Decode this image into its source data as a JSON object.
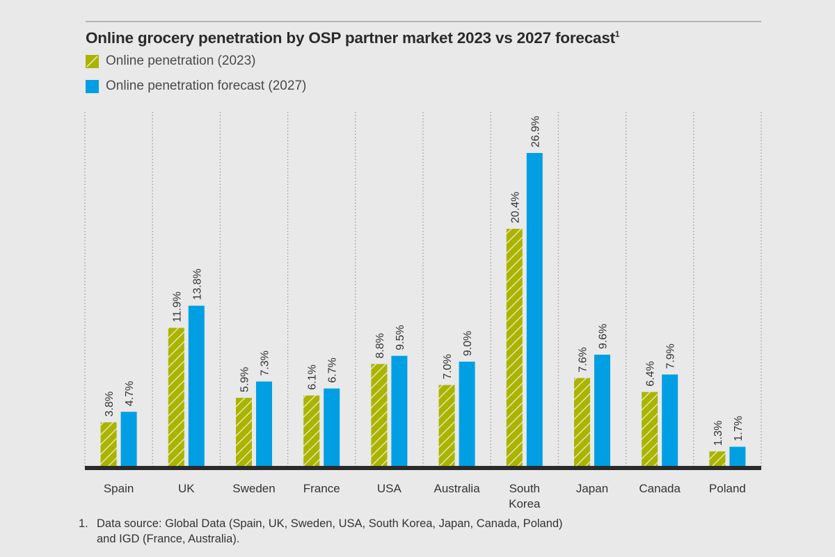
{
  "chart_data": {
    "type": "bar",
    "title": "Online grocery penetration by OSP partner market 2023 vs 2027 forecast",
    "title_footnote_marker": "1",
    "categories": [
      "Spain",
      "UK",
      "Sweden",
      "France",
      "USA",
      "Australia",
      "South Korea",
      "Japan",
      "Canada",
      "Poland"
    ],
    "category_lines": [
      [
        "Spain"
      ],
      [
        "UK"
      ],
      [
        "Sweden"
      ],
      [
        "France"
      ],
      [
        "USA"
      ],
      [
        "Australia"
      ],
      [
        "South",
        "Korea"
      ],
      [
        "Japan"
      ],
      [
        "Canada"
      ],
      [
        "Poland"
      ]
    ],
    "series": [
      {
        "name": "Online penetration (2023)",
        "color": "#aab400",
        "pattern": "hatched",
        "values": [
          3.8,
          11.9,
          5.9,
          6.1,
          8.8,
          7.0,
          20.4,
          7.6,
          6.4,
          1.3
        ],
        "labels": [
          "3.8%",
          "11.9%",
          "5.9%",
          "6.1%",
          "8.8%",
          "7.0%",
          "20.4%",
          "7.6%",
          "6.4%",
          "1.3%"
        ]
      },
      {
        "name": "Online penetration forecast (2027)",
        "color": "#009fe3",
        "pattern": "solid",
        "values": [
          4.7,
          13.8,
          7.3,
          6.7,
          9.5,
          9.0,
          26.9,
          9.6,
          7.9,
          1.7
        ],
        "labels": [
          "4.7%",
          "13.8%",
          "7.3%",
          "6.7%",
          "9.5%",
          "9.0%",
          "26.9%",
          "9.6%",
          "7.9%",
          "1.7%"
        ]
      }
    ],
    "xlabel": "",
    "ylabel": "",
    "ylim": [
      0,
      30
    ],
    "unit": "%",
    "grid": "vertical-dotted-separators",
    "legend_position": "top-left"
  },
  "legend": [
    {
      "label": "Online penetration (2023)",
      "color": "#aab400"
    },
    {
      "label": "Online penetration forecast (2027)",
      "color": "#009fe3"
    }
  ],
  "footnote": {
    "number": "1.",
    "line1": "Data source: Global Data (Spain, UK, Sweden, USA, South Korea, Japan, Canada, Poland)",
    "line2": "and IGD (France, Australia)."
  }
}
